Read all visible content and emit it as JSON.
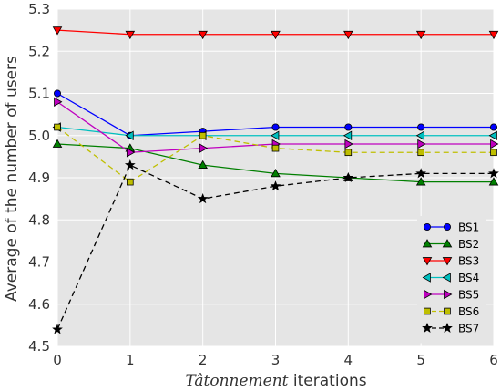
{
  "chart_data": {
    "type": "line",
    "xlabel_italic": "Tâtonnement",
    "xlabel_rest": " iterations",
    "ylabel": "Average of the number of users",
    "x": [
      0,
      1,
      2,
      3,
      4,
      5,
      6
    ],
    "xlim": [
      0,
      6
    ],
    "ylim": [
      4.5,
      5.3
    ],
    "xticks": [
      "0",
      "1",
      "2",
      "3",
      "4",
      "5",
      "6"
    ],
    "yticks": [
      "4.5",
      "4.6",
      "4.7",
      "4.8",
      "4.9",
      "5.0",
      "5.1",
      "5.2",
      "5.3"
    ],
    "grid": true,
    "legend_position": "lower-right",
    "series": [
      {
        "name": "BS1",
        "values": [
          5.1,
          5.0,
          5.01,
          5.02,
          5.02,
          5.02,
          5.02
        ],
        "color": "#0000ff",
        "marker": "circle",
        "dash": "solid"
      },
      {
        "name": "BS2",
        "values": [
          4.98,
          4.97,
          4.93,
          4.91,
          4.9,
          4.89,
          4.89
        ],
        "color": "#007f00",
        "marker": "triangle-up",
        "dash": "solid"
      },
      {
        "name": "BS3",
        "values": [
          5.25,
          5.24,
          5.24,
          5.24,
          5.24,
          5.24,
          5.24
        ],
        "color": "#ff0000",
        "marker": "triangle-down",
        "dash": "solid"
      },
      {
        "name": "BS4",
        "values": [
          5.02,
          5.0,
          5.0,
          5.0,
          5.0,
          5.0,
          5.0
        ],
        "color": "#00bfbf",
        "marker": "triangle-left",
        "dash": "solid"
      },
      {
        "name": "BS5",
        "values": [
          5.08,
          4.96,
          4.97,
          4.98,
          4.98,
          4.98,
          4.98
        ],
        "color": "#bf00bf",
        "marker": "triangle-right",
        "dash": "solid"
      },
      {
        "name": "BS6",
        "values": [
          5.02,
          4.89,
          5.0,
          4.97,
          4.96,
          4.96,
          4.96
        ],
        "color": "#bfbf00",
        "marker": "square",
        "dash": "dashed"
      },
      {
        "name": "BS7",
        "values": [
          4.54,
          4.93,
          4.85,
          4.88,
          4.9,
          4.91,
          4.91
        ],
        "color": "#000000",
        "marker": "star",
        "dash": "dashed"
      }
    ]
  }
}
